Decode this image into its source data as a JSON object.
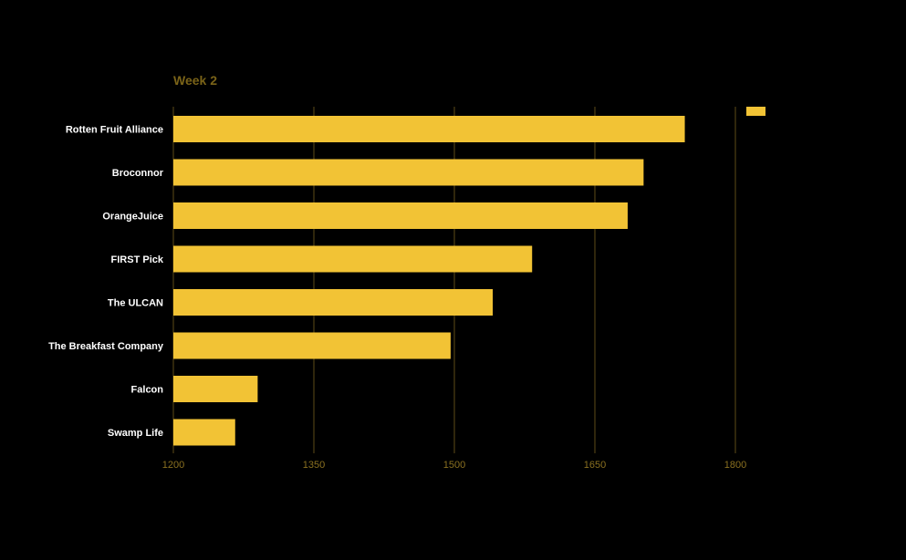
{
  "chart_data": {
    "type": "bar",
    "orientation": "horizontal",
    "title": "Week 2",
    "categories": [
      "Rotten Fruit Alliance",
      "Broconnor",
      "OrangeJuice",
      "FIRST Pick",
      "The ULCAN",
      "The Breakfast Company",
      "Falcon",
      "Swamp Life"
    ],
    "values": [
      1746,
      1702,
      1685,
      1583,
      1541,
      1496,
      1290,
      1266
    ],
    "xlim": [
      1200,
      1800
    ],
    "xticks": [
      "1200",
      "1350",
      "1500",
      "1650",
      "1800"
    ],
    "xlabel": "",
    "ylabel": "",
    "grid": "vertical",
    "legend": {
      "position": "top-right",
      "label": ""
    }
  },
  "colors": {
    "background": "#000000",
    "bar": "#f2c335",
    "grid": "#5e4c17",
    "title": "#7a6318",
    "tick_label": "#8a7020",
    "category_label": "#ffffff"
  }
}
